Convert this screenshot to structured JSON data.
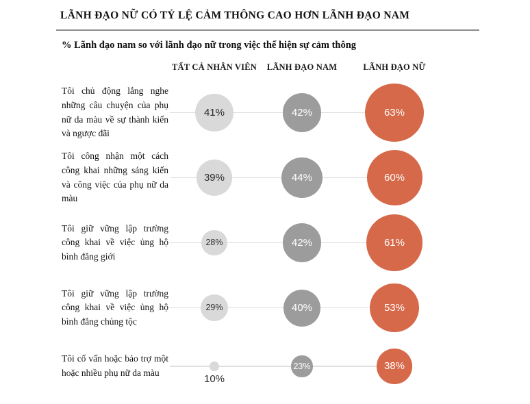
{
  "chart_data": {
    "type": "scatter",
    "variant": "bubble-row-matrix",
    "title": "LÃNH ĐẠO NỮ CÓ TỶ LỆ CẢM THÔNG CAO HƠN LÃNH ĐẠO NAM",
    "subtitle": "% Lãnh đạo nam so với lãnh đạo nữ trong việc thể hiện sự cảm thông",
    "categories": [
      "Tôi chủ động lắng nghe những câu chuyện của phụ nữ da màu về sự thành kiến và ngược đãi",
      "Tôi công nhận một cách công khai những sáng kiến và công việc của phụ nữ da màu",
      "Tôi giữ vững lập trường công khai về việc ủng hộ bình đẳng giới",
      "Tôi giữ vững lập trường công khai về việc ủng hộ bình đẳng chủng tộc",
      "Tôi cố vấn hoặc bảo trợ một hoặc nhiều phụ nữ da màu"
    ],
    "series": [
      {
        "name": "TẤT CẢ NHÂN VIÊN",
        "values": [
          41,
          39,
          28,
          29,
          10
        ],
        "color": "#d9d9d9",
        "text_color": "#2b2b2b"
      },
      {
        "name": "LÃNH ĐẠO NAM",
        "values": [
          42,
          44,
          42,
          40,
          23
        ],
        "color": "#9c9c9c",
        "text_color": "#ffffff"
      },
      {
        "name": "LÃNH ĐẠO NỮ",
        "values": [
          63,
          60,
          61,
          53,
          38
        ],
        "color": "#d6694a",
        "text_color": "#ffffff"
      }
    ],
    "value_suffix": "%",
    "legend_position": "top-column-headers",
    "grid": false,
    "notes": "Bubble area encodes percentage; gray connector line links the three bubbles of each row; values below ~17% render as a small dot with the label underneath."
  }
}
